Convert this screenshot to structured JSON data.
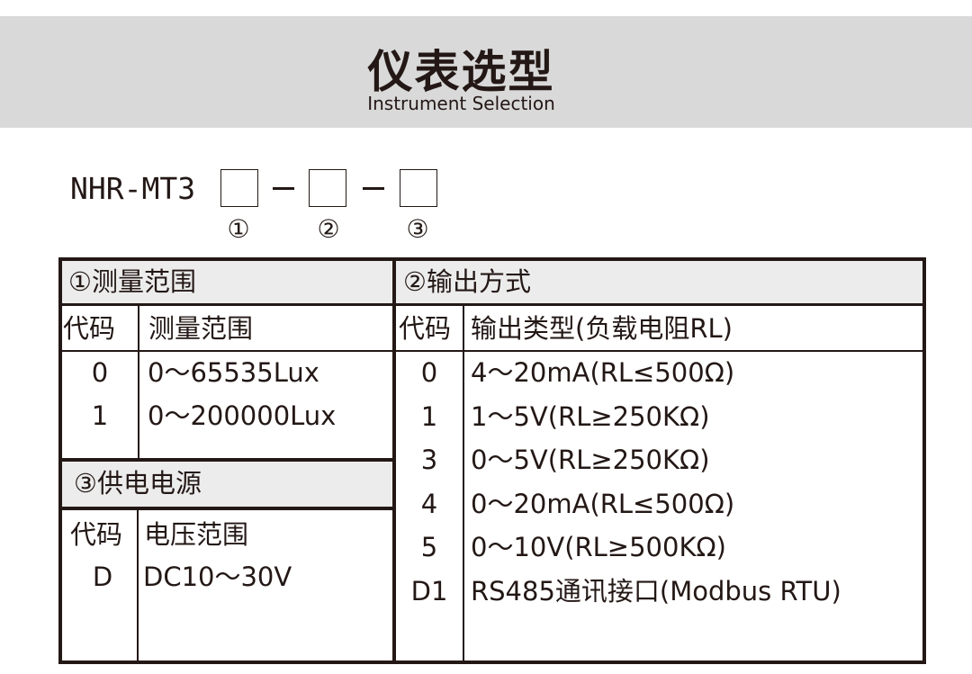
{
  "header": {
    "title": "仪表选型",
    "subtitle": "Instrument Selection"
  },
  "model": {
    "prefix": "NHR-MT3",
    "markers": [
      "①",
      "②",
      "③"
    ]
  },
  "measure": {
    "title": "①测量范围",
    "col_code": "代码",
    "col_value": "测量范围",
    "rows": [
      {
        "code": "0",
        "value": "0～65535Lux"
      },
      {
        "code": "1",
        "value": "0～200000Lux"
      }
    ]
  },
  "output": {
    "title": "②输出方式",
    "col_code": "代码",
    "col_value": "输出类型(负载电阻RL)",
    "rows": [
      {
        "code": "0",
        "value": "4～20mA(RL≤500Ω)"
      },
      {
        "code": "1",
        "value": "1～5V(RL≥250KΩ)"
      },
      {
        "code": "3",
        "value": "0～5V(RL≥250KΩ)"
      },
      {
        "code": "4",
        "value": "0～20mA(RL≤500Ω)"
      },
      {
        "code": "5",
        "value": "0～10V(RL≥500KΩ)"
      },
      {
        "code": "D1",
        "value": "RS485通讯接口(Modbus RTU)"
      }
    ]
  },
  "power": {
    "title": "③供电电源",
    "col_code": "代码",
    "col_value": "电压范围",
    "rows": [
      {
        "code": "D",
        "value": "DC10～30V"
      }
    ]
  }
}
